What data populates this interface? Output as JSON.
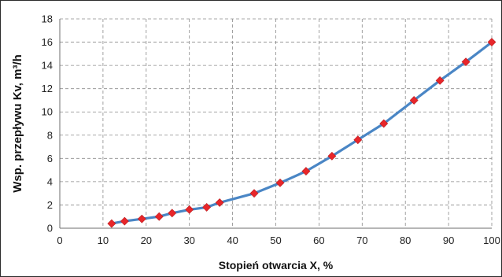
{
  "chart_data": {
    "type": "line",
    "title": "",
    "xlabel": "Stopień  otwarcia X, %",
    "ylabel": "Wsp. przepływu Kv, m³/h",
    "xlim": [
      0,
      100
    ],
    "ylim": [
      0,
      18
    ],
    "x_ticks": [
      0,
      10,
      20,
      30,
      40,
      50,
      60,
      70,
      80,
      90,
      100
    ],
    "y_ticks": [
      0,
      2,
      4,
      6,
      8,
      10,
      12,
      14,
      16,
      18
    ],
    "grid": true,
    "legend": "none",
    "series": [
      {
        "line_color": "#4a86c5",
        "marker": "diamond",
        "marker_color": "#e8262a",
        "x": [
          12,
          15,
          19,
          23,
          26,
          30,
          34,
          37,
          45,
          51,
          57,
          63,
          69,
          75,
          82,
          88,
          94,
          100
        ],
        "y": [
          0.4,
          0.6,
          0.8,
          1.0,
          1.3,
          1.6,
          1.8,
          2.2,
          3.0,
          3.9,
          4.9,
          6.2,
          7.6,
          9.0,
          11.0,
          12.7,
          14.3,
          16.0
        ]
      }
    ]
  }
}
